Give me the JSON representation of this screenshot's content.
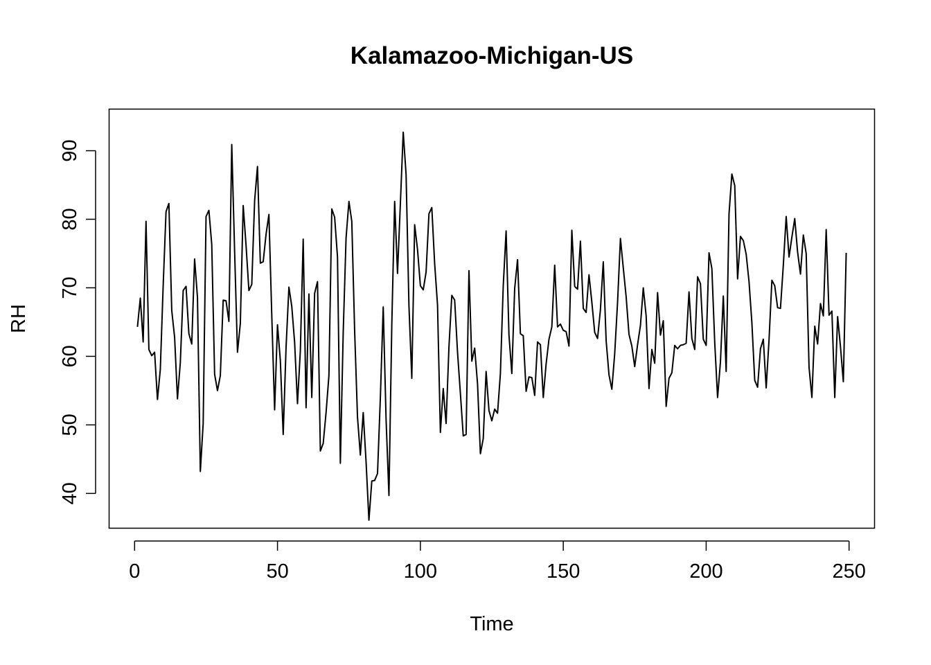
{
  "chart_data": {
    "type": "line",
    "title": "Kalamazoo-Michigan-US",
    "xlabel": "Time",
    "ylabel": "RH",
    "xlim": [
      -8.92,
      258.92
    ],
    "ylim": [
      34.93,
      96.07
    ],
    "xticks": [
      0,
      50,
      100,
      150,
      200,
      250
    ],
    "yticks": [
      40,
      50,
      60,
      70,
      80,
      90
    ],
    "grid": false,
    "legend": "none",
    "line_color": "#000000",
    "series": [
      {
        "x_start": 1,
        "values": [
          64.3,
          68.5,
          62.1,
          79.7,
          61.0,
          60.1,
          60.6,
          53.7,
          58.1,
          70.3,
          81.1,
          82.3,
          66.7,
          62.8,
          53.8,
          59.1,
          69.6,
          70.2,
          63.3,
          61.8,
          74.2,
          68.6,
          43.2,
          50.2,
          80.4,
          81.3,
          76.3,
          57.4,
          55.0,
          57.2,
          68.2,
          68.1,
          65.1,
          90.9,
          75.3,
          60.6,
          64.8,
          82.0,
          76.2,
          69.6,
          70.5,
          82.7,
          87.7,
          73.6,
          73.8,
          77.8,
          80.7,
          66.0,
          52.2,
          64.6,
          59.4,
          48.6,
          61.3,
          70.1,
          67.3,
          62.0,
          53.1,
          60.8,
          77.1,
          52.5,
          69.1,
          54.0,
          69.2,
          70.9,
          46.2,
          47.3,
          51.8,
          57.2,
          81.5,
          80.3,
          74.5,
          44.4,
          63.5,
          77.3,
          82.6,
          79.7,
          63.7,
          51.1,
          45.6,
          51.8,
          44.6,
          36.1,
          41.8,
          41.9,
          42.9,
          54.0,
          67.2,
          50.8,
          39.7,
          64.6,
          82.6,
          72.1,
          82.3,
          92.7,
          86.5,
          67.4,
          56.8,
          79.2,
          75.6,
          70.3,
          69.7,
          72.3,
          80.8,
          81.7,
          73.5,
          67.5,
          48.9,
          55.3,
          50.2,
          61.4,
          68.9,
          68.2,
          60.6,
          54.6,
          48.4,
          48.6,
          72.5,
          59.3,
          61.2,
          56.0,
          45.8,
          48.0,
          57.8,
          52.1,
          50.6,
          52.3,
          51.7,
          57.5,
          70.3,
          78.3,
          63.1,
          57.5,
          69.9,
          74.1,
          63.3,
          63.0,
          54.9,
          57.0,
          56.9,
          54.3,
          62.1,
          61.7,
          54.0,
          58.9,
          62.5,
          64.3,
          73.3,
          64.3,
          64.7,
          63.8,
          63.6,
          61.5,
          78.4,
          70.2,
          69.8,
          76.8,
          67.0,
          66.4,
          71.9,
          67.9,
          63.5,
          62.6,
          66.8,
          73.8,
          62.3,
          57.3,
          55.2,
          60.4,
          67.9,
          77.2,
          72.9,
          68.7,
          63.2,
          61.5,
          58.5,
          61.7,
          64.5,
          70.0,
          65.9,
          55.3,
          61.0,
          59.0,
          69.3,
          63.1,
          65.2,
          52.7,
          56.8,
          57.6,
          61.6,
          61.1,
          61.6,
          61.7,
          61.9,
          69.4,
          62.6,
          61.0,
          71.6,
          70.6,
          62.5,
          61.6,
          75.1,
          72.8,
          62.0,
          54.0,
          59.2,
          68.8,
          57.8,
          80.8,
          86.6,
          84.9,
          71.3,
          77.5,
          76.9,
          74.9,
          70.9,
          64.9,
          56.5,
          55.5,
          61.1,
          62.5,
          55.4,
          62.4,
          71.1,
          70.3,
          67.1,
          67.0,
          73.3,
          80.4,
          74.5,
          77.4,
          80.1,
          75.2,
          72.0,
          77.7,
          75.0,
          58.4,
          54.0,
          64.4,
          61.8,
          67.7,
          65.9,
          78.5,
          66.0,
          66.6,
          54.0,
          65.8,
          61.4,
          56.3,
          75.1
        ]
      }
    ]
  }
}
